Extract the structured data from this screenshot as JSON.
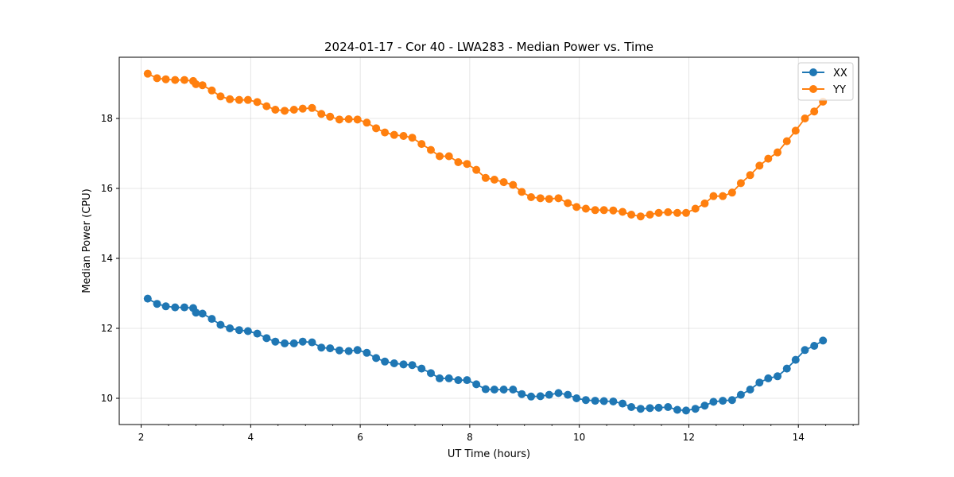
{
  "chart_data": {
    "type": "line",
    "title": "2024-01-17 - Cor 40 - LWA283 - Median Power vs. Time",
    "xlabel": "UT Time (hours)",
    "ylabel": "Median Power (CPU)",
    "xlim": [
      1.6,
      15.1
    ],
    "ylim": [
      9.25,
      19.75
    ],
    "xticks": [
      2,
      4,
      6,
      8,
      10,
      12,
      14
    ],
    "yticks": [
      10,
      12,
      14,
      16,
      18
    ],
    "grid": true,
    "legend_position": "top-right",
    "x": [
      2.12,
      2.29,
      2.45,
      2.62,
      2.79,
      2.95,
      3.0,
      3.12,
      3.29,
      3.45,
      3.62,
      3.79,
      3.95,
      4.12,
      4.29,
      4.45,
      4.62,
      4.79,
      4.95,
      5.12,
      5.29,
      5.45,
      5.62,
      5.79,
      5.95,
      6.12,
      6.29,
      6.45,
      6.62,
      6.79,
      6.95,
      7.12,
      7.29,
      7.45,
      7.62,
      7.79,
      7.95,
      8.12,
      8.29,
      8.45,
      8.62,
      8.79,
      8.95,
      9.12,
      9.29,
      9.45,
      9.62,
      9.79,
      9.95,
      10.12,
      10.29,
      10.45,
      10.62,
      10.79,
      10.95,
      11.12,
      11.29,
      11.45,
      11.62,
      11.79,
      11.95,
      12.12,
      12.29,
      12.45,
      12.62,
      12.79,
      12.95,
      13.12,
      13.29,
      13.45,
      13.62,
      13.79,
      13.95,
      14.12,
      14.29,
      14.45
    ],
    "series": [
      {
        "name": "XX",
        "color": "#1f77b4",
        "values": [
          12.85,
          12.7,
          12.63,
          12.6,
          12.6,
          12.58,
          12.45,
          12.42,
          12.27,
          12.1,
          12.0,
          11.95,
          11.92,
          11.85,
          11.72,
          11.62,
          11.57,
          11.57,
          11.62,
          11.6,
          11.45,
          11.43,
          11.37,
          11.35,
          11.38,
          11.3,
          11.15,
          11.05,
          11.0,
          10.97,
          10.95,
          10.85,
          10.72,
          10.57,
          10.57,
          10.52,
          10.52,
          10.4,
          10.26,
          10.25,
          10.25,
          10.25,
          10.12,
          10.05,
          10.06,
          10.1,
          10.15,
          10.1,
          10.0,
          9.95,
          9.93,
          9.92,
          9.91,
          9.85,
          9.75,
          9.7,
          9.72,
          9.73,
          9.75,
          9.67,
          9.65,
          9.7,
          9.79,
          9.9,
          9.93,
          9.95,
          10.1,
          10.25,
          10.45,
          10.57,
          10.63,
          10.85,
          11.1,
          11.38,
          11.5,
          11.65
        ]
      },
      {
        "name": "YY",
        "color": "#ff7f0e",
        "values": [
          19.28,
          19.15,
          19.12,
          19.1,
          19.1,
          19.07,
          18.98,
          18.95,
          18.8,
          18.63,
          18.55,
          18.53,
          18.53,
          18.47,
          18.35,
          18.25,
          18.22,
          18.25,
          18.28,
          18.3,
          18.13,
          18.05,
          17.97,
          17.98,
          17.97,
          17.88,
          17.72,
          17.6,
          17.53,
          17.5,
          17.45,
          17.27,
          17.1,
          16.92,
          16.92,
          16.75,
          16.7,
          16.53,
          16.3,
          16.25,
          16.18,
          16.1,
          15.9,
          15.75,
          15.72,
          15.7,
          15.72,
          15.58,
          15.47,
          15.42,
          15.38,
          15.38,
          15.37,
          15.33,
          15.25,
          15.2,
          15.25,
          15.3,
          15.32,
          15.3,
          15.3,
          15.42,
          15.57,
          15.78,
          15.78,
          15.88,
          16.15,
          16.38,
          16.65,
          16.85,
          17.03,
          17.35,
          17.65,
          18.0,
          18.2,
          18.48
        ]
      }
    ]
  }
}
